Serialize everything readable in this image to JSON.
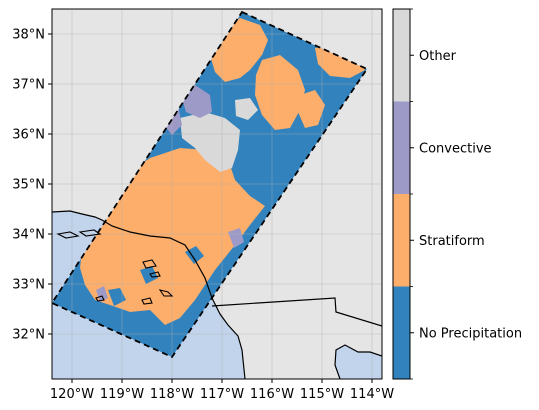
{
  "map": {
    "lon_range": [
      -120.4,
      -113.8
    ],
    "lat_range": [
      31.1,
      38.5
    ],
    "x_ticks": [
      {
        "value": -120,
        "label": "120°W"
      },
      {
        "value": -119,
        "label": "119°W"
      },
      {
        "value": -118,
        "label": "118°W"
      },
      {
        "value": -117,
        "label": "117°W"
      },
      {
        "value": -116,
        "label": "116°W"
      },
      {
        "value": -115,
        "label": "115°W"
      },
      {
        "value": -114,
        "label": "114°W"
      }
    ],
    "y_ticks": [
      {
        "value": 32,
        "label": "32°N"
      },
      {
        "value": 33,
        "label": "33°N"
      },
      {
        "value": 34,
        "label": "34°N"
      },
      {
        "value": 35,
        "label": "35°N"
      },
      {
        "value": 36,
        "label": "36°N"
      },
      {
        "value": 37,
        "label": "37°N"
      },
      {
        "value": 38,
        "label": "38°N"
      }
    ],
    "gridlines": true,
    "background_color": "#e5e5e5",
    "ocean_color": "#c2d4ec",
    "swath_outline": "dashed black",
    "swath_corners_lonlat": [
      [
        -117.55,
        38.45
      ],
      [
        -113.95,
        37.25
      ],
      [
        -118.0,
        31.45
      ],
      [
        -120.4,
        32.55
      ]
    ]
  },
  "legend": {
    "type": "categorical colorbar",
    "categories": [
      {
        "label": "Other",
        "color": "#d9d9d9"
      },
      {
        "label": "Convective",
        "color": "#9e9ac8"
      },
      {
        "label": "Stratiform",
        "color": "#fdae6b"
      },
      {
        "label": "No Precipitation",
        "color": "#3182bd"
      }
    ]
  }
}
